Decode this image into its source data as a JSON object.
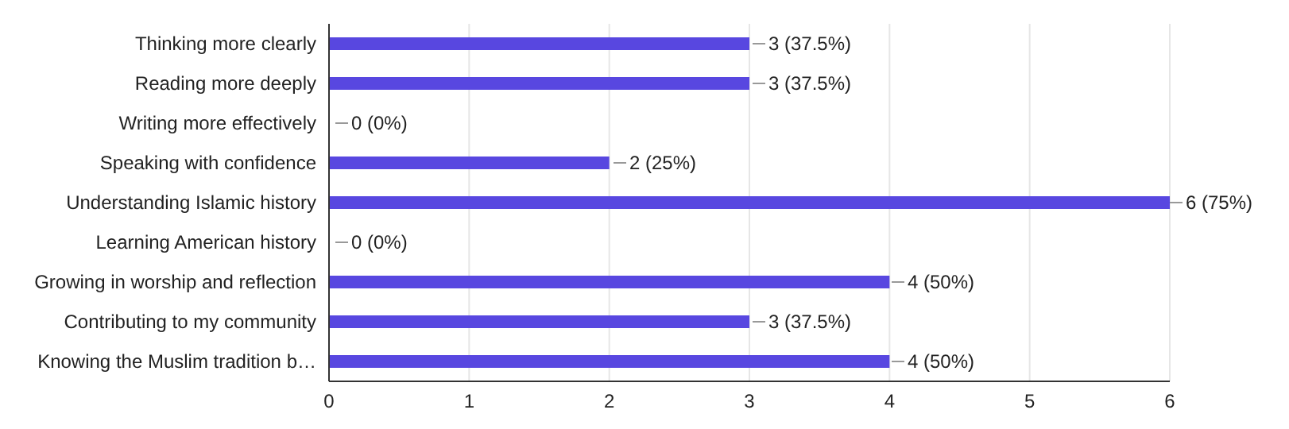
{
  "chart_data": {
    "type": "bar",
    "orientation": "horizontal",
    "categories": [
      "Thinking more clearly",
      "Reading more deeply",
      "Writing more effectively",
      "Speaking with confidence",
      "Understanding Islamic history",
      "Learning American history",
      "Growing in worship and reflection",
      "Contributing to my community",
      "Knowing the Muslim tradition b…"
    ],
    "values": [
      3,
      3,
      0,
      2,
      6,
      0,
      4,
      3,
      4
    ],
    "value_labels": [
      "3 (37.5%)",
      "3 (37.5%)",
      "0 (0%)",
      "2 (25%)",
      "6 (75%)",
      "0 (0%)",
      "4 (50%)",
      "3 (37.5%)",
      "4 (50%)"
    ],
    "color": "#5847e0",
    "xlim": [
      0,
      6
    ],
    "xticks": [
      0,
      1,
      2,
      3,
      4,
      5,
      6
    ],
    "grid": "x",
    "legend": false
  }
}
